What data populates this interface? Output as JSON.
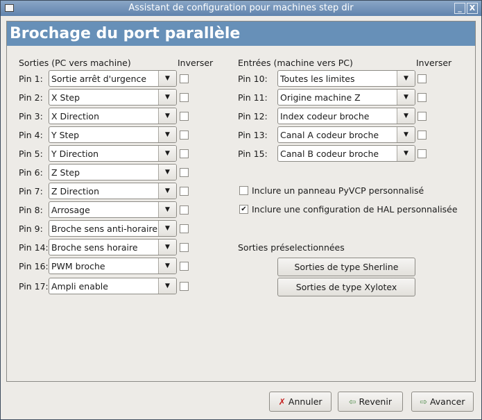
{
  "window": {
    "title": "Assistant de configuration pour machines step dir",
    "minimize": "_",
    "close": "X"
  },
  "header": {
    "title": "Brochage du port parallèle"
  },
  "outputs": {
    "heading": "Sorties (PC vers machine)",
    "invert_heading": "Inverser",
    "rows": [
      {
        "pin": "Pin 1:",
        "value": "Sortie arrêt d'urgence",
        "inverted": false
      },
      {
        "pin": "Pin 2:",
        "value": "X Step",
        "inverted": false
      },
      {
        "pin": "Pin 3:",
        "value": "X Direction",
        "inverted": false
      },
      {
        "pin": "Pin 4:",
        "value": "Y Step",
        "inverted": false
      },
      {
        "pin": "Pin 5:",
        "value": "Y Direction",
        "inverted": false
      },
      {
        "pin": "Pin 6:",
        "value": "Z Step",
        "inverted": false
      },
      {
        "pin": "Pin 7:",
        "value": "Z Direction",
        "inverted": false
      },
      {
        "pin": "Pin 8:",
        "value": "Arrosage",
        "inverted": false
      },
      {
        "pin": "Pin 9:",
        "value": "Broche sens anti-horaire",
        "inverted": false
      },
      {
        "pin": "Pin 14:",
        "value": "Broche sens horaire",
        "inverted": false
      },
      {
        "pin": "Pin 16:",
        "value": "PWM broche",
        "inverted": false
      },
      {
        "pin": "Pin 17:",
        "value": "Ampli enable",
        "inverted": false
      }
    ]
  },
  "inputs": {
    "heading": "Entrées (machine vers PC)",
    "invert_heading": "Inverser",
    "rows": [
      {
        "pin": "Pin 10:",
        "value": "Toutes les limites",
        "inverted": false
      },
      {
        "pin": "Pin 11:",
        "value": "Origine machine Z",
        "inverted": false
      },
      {
        "pin": "Pin 12:",
        "value": "Index codeur broche",
        "inverted": false
      },
      {
        "pin": "Pin 13:",
        "value": "Canal A codeur broche",
        "inverted": false
      },
      {
        "pin": "Pin 15:",
        "value": "Canal B codeur broche",
        "inverted": false
      }
    ]
  },
  "options": {
    "pyvcp": {
      "label": "Inclure un panneau PyVCP personnalisé",
      "checked": false
    },
    "hal": {
      "label": "Inclure une configuration de HAL personnalisée",
      "checked": true
    }
  },
  "presets": {
    "heading": "Sorties préselectionnées",
    "sherline": "Sorties de type Sherline",
    "xylotex": "Sorties de type Xylotex"
  },
  "footer": {
    "cancel": "Annuler",
    "back": "Revenir",
    "forward": "Avancer"
  },
  "colors": {
    "banner": "#6790b8",
    "titlebar": "#6f90b8"
  }
}
